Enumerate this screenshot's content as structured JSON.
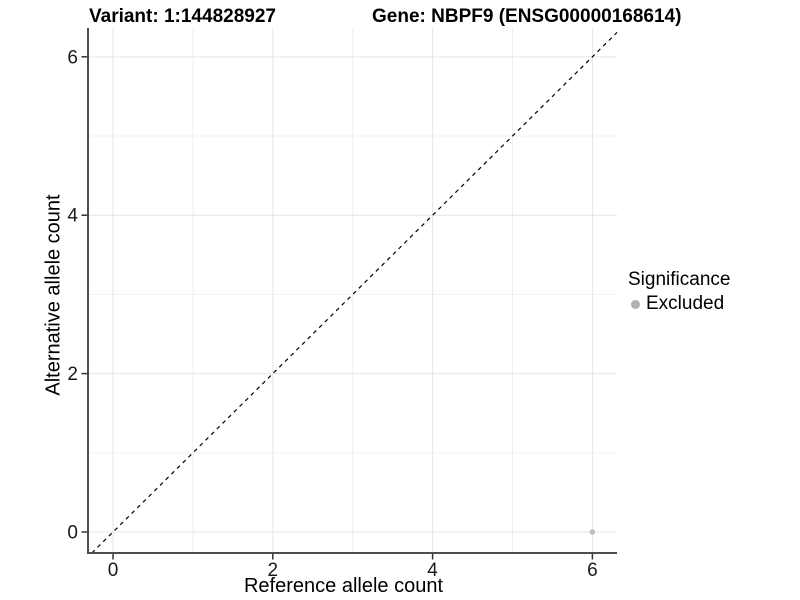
{
  "header": {
    "variant_title": "Variant: 1:144828927",
    "gene_title": "Gene: NBPF9 (ENSG00000168614)"
  },
  "chart_data": {
    "type": "scatter",
    "title_left": "Variant: 1:144828927",
    "title_right": "Gene: NBPF9 (ENSG00000168614)",
    "xlabel": "Reference allele count",
    "ylabel": "Alternative allele count",
    "xlim": [
      -0.313,
      6.308
    ],
    "ylim": [
      -0.265,
      6.364
    ],
    "x_ticks": [
      0,
      2,
      4,
      6
    ],
    "y_ticks": [
      0,
      2,
      4,
      6
    ],
    "x_minor_ticks": [
      1,
      3,
      5
    ],
    "y_minor_ticks": [
      1,
      3,
      5
    ],
    "grid": true,
    "legend": {
      "title": "Significance",
      "position": "right",
      "items": [
        {
          "label": "Excluded",
          "color": "#b0b0b0"
        }
      ]
    },
    "series": [
      {
        "name": "Excluded",
        "color": "#bebebe",
        "points": [
          {
            "x": 6,
            "y": 0
          }
        ]
      }
    ],
    "reference_line": {
      "description": "identity line y = x",
      "slope": 1,
      "intercept": 0,
      "style": "dashed",
      "color": "#000000"
    },
    "colors": {
      "grid_major": "#e6e6e6",
      "grid_minor": "#f0f0f0",
      "axis_line": "#4d4d4d",
      "tick_mark": "#333333",
      "tick_label": "#1a1a1a"
    }
  }
}
